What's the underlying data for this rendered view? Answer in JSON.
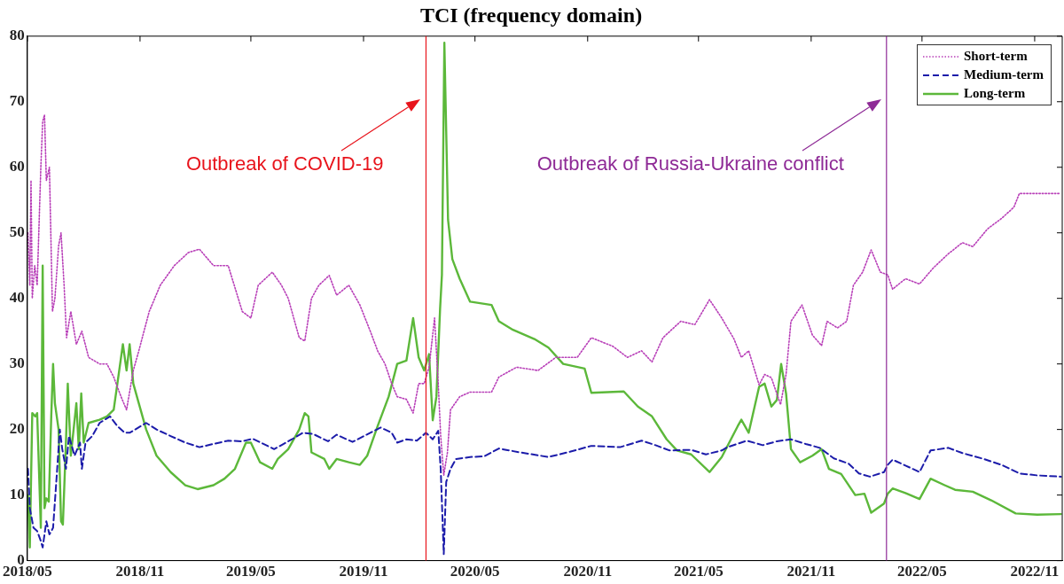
{
  "chart_data": {
    "type": "line",
    "title": "TCI (frequency domain)",
    "xlim": [
      "2018-05-01",
      "2022-12-16"
    ],
    "xticks": [
      {
        "value": "2018-05-01",
        "label": "2018/05"
      },
      {
        "value": "2018-11-01",
        "label": "2018/11"
      },
      {
        "value": "2019-05-01",
        "label": "2019/05"
      },
      {
        "value": "2019-11-01",
        "label": "2019/11"
      },
      {
        "value": "2020-05-01",
        "label": "2020/05"
      },
      {
        "value": "2020-11-01",
        "label": "2020/11"
      },
      {
        "value": "2021-05-01",
        "label": "2021/05"
      },
      {
        "value": "2021-11-01",
        "label": "2021/11"
      },
      {
        "value": "2022-05-01",
        "label": "2022/05"
      },
      {
        "value": "2022-11-01",
        "label": "2022/11"
      }
    ],
    "ylim": [
      0,
      80
    ],
    "yticks": [
      0,
      10,
      20,
      30,
      40,
      50,
      60,
      70,
      80
    ],
    "grid": false,
    "legend": "top right",
    "marker": "none",
    "ref_lines": [
      {
        "axis": "x",
        "value": "2020-02-11",
        "label": "Outbreak of COVID-19",
        "color": "#e8141c"
      },
      {
        "axis": "x",
        "value": "2022-03-04",
        "label": "Outbreak of Russia-Ukraine conflict",
        "color": "#8e2a96"
      }
    ],
    "series": [
      {
        "name": "Short-term",
        "color": "#b83fb8",
        "line_style": "dotted",
        "x": [
          "2018-05-02",
          "2018-05-05",
          "2018-05-07",
          "2018-05-09",
          "2018-05-13",
          "2018-05-17",
          "2018-05-23",
          "2018-05-26",
          "2018-05-29",
          "2018-06-01",
          "2018-06-06",
          "2018-06-11",
          "2018-06-15",
          "2018-06-21",
          "2018-06-25",
          "2018-06-30",
          "2018-07-04",
          "2018-07-11",
          "2018-07-20",
          "2018-07-29",
          "2018-08-09",
          "2018-08-27",
          "2018-09-08",
          "2018-09-19",
          "2018-10-01",
          "2018-10-10",
          "2018-10-21",
          "2018-10-30",
          "2018-11-16",
          "2018-12-04",
          "2018-12-27",
          "2019-01-19",
          "2019-02-06",
          "2019-03-01",
          "2019-03-25",
          "2019-04-17",
          "2019-05-01",
          "2019-05-13",
          "2019-06-05",
          "2019-06-20",
          "2019-07-01",
          "2019-07-19",
          "2019-07-28",
          "2019-08-08",
          "2019-08-20",
          "2019-09-06",
          "2019-09-18",
          "2019-10-08",
          "2019-10-26",
          "2019-11-12",
          "2019-11-24",
          "2019-12-06",
          "2019-12-17",
          "2019-12-26",
          "2020-01-10",
          "2020-01-21",
          "2020-01-30",
          "2020-02-08",
          "2020-02-16",
          "2020-02-25",
          "2020-03-02",
          "2020-03-06",
          "2020-03-11",
          "2020-03-17",
          "2020-03-22",
          "2020-04-06",
          "2020-04-23",
          "2020-05-28",
          "2020-06-09",
          "2020-07-08",
          "2020-08-12",
          "2020-09-10",
          "2020-10-15",
          "2020-11-07",
          "2020-12-12",
          "2021-01-05",
          "2021-01-28",
          "2021-02-14",
          "2021-03-04",
          "2021-04-02",
          "2021-04-25",
          "2021-05-19",
          "2021-06-08",
          "2021-06-28",
          "2021-07-10",
          "2021-07-22",
          "2021-08-08",
          "2021-08-17",
          "2021-08-28",
          "2021-09-12",
          "2021-09-21",
          "2021-09-29",
          "2021-10-17",
          "2021-11-03",
          "2021-11-18",
          "2021-11-27",
          "2021-12-14",
          "2021-12-29",
          "2022-01-09",
          "2022-01-24",
          "2022-02-07",
          "2022-02-22",
          "2022-03-06",
          "2022-03-14",
          "2022-04-04",
          "2022-04-27",
          "2022-05-20",
          "2022-06-13",
          "2022-07-06",
          "2022-07-23",
          "2022-08-16",
          "2022-09-08",
          "2022-09-28",
          "2022-10-07",
          "2022-11-05",
          "2022-12-13"
        ],
        "values": [
          50,
          42,
          58,
          40,
          45,
          42,
          60,
          67,
          68,
          58,
          60,
          38,
          40,
          48,
          50,
          42,
          34,
          38,
          33,
          35,
          31,
          30,
          30,
          28,
          25,
          23,
          29,
          32,
          38,
          42,
          45,
          47,
          47.5,
          45,
          45,
          38,
          37,
          42,
          44,
          42,
          40,
          34,
          33.5,
          40,
          42,
          43.5,
          40.5,
          42,
          39,
          35,
          32,
          30,
          27,
          25,
          24.6,
          22.5,
          27,
          27,
          29.5,
          37,
          27,
          19,
          13,
          16.5,
          23,
          25,
          25.7,
          25.7,
          28,
          29.5,
          29,
          31,
          31,
          34,
          32.7,
          31,
          32,
          30.3,
          34,
          36.5,
          36,
          39.8,
          37,
          33.8,
          31,
          32,
          26.8,
          28.4,
          27.9,
          23.8,
          28.4,
          36.5,
          39,
          34.4,
          32.8,
          36.5,
          35.5,
          36.5,
          42,
          44,
          47.4,
          44,
          43.6,
          41.4,
          43,
          42.2,
          44.7,
          46.8,
          48.5,
          47.9,
          50.6,
          52.2,
          53.9,
          56,
          56,
          56
        ]
      },
      {
        "name": "Medium-term",
        "color": "#1c1caa",
        "line_style": "dashed",
        "x": [
          "2018-05-02",
          "2018-05-05",
          "2018-05-11",
          "2018-05-17",
          "2018-05-23",
          "2018-05-26",
          "2018-06-01",
          "2018-06-06",
          "2018-06-12",
          "2018-06-18",
          "2018-06-23",
          "2018-06-27",
          "2018-07-03",
          "2018-07-08",
          "2018-07-17",
          "2018-07-26",
          "2018-07-29",
          "2018-08-04",
          "2018-08-15",
          "2018-08-27",
          "2018-09-13",
          "2018-09-25",
          "2018-10-07",
          "2018-10-15",
          "2018-10-24",
          "2018-11-11",
          "2018-11-28",
          "2018-12-21",
          "2019-01-14",
          "2019-02-06",
          "2019-03-01",
          "2019-03-25",
          "2019-04-17",
          "2019-05-04",
          "2019-06-08",
          "2019-07-07",
          "2019-07-25",
          "2019-08-11",
          "2019-09-04",
          "2019-09-18",
          "2019-10-14",
          "2019-11-12",
          "2019-11-29",
          "2019-12-17",
          "2019-12-26",
          "2020-01-10",
          "2020-01-27",
          "2020-02-11",
          "2020-02-22",
          "2020-03-02",
          "2020-03-06",
          "2020-03-11",
          "2020-03-15",
          "2020-03-22",
          "2020-03-31",
          "2020-04-23",
          "2020-05-16",
          "2020-06-09",
          "2020-07-14",
          "2020-08-29",
          "2020-10-03",
          "2020-11-07",
          "2020-12-24",
          "2021-01-28",
          "2021-02-20",
          "2021-03-15",
          "2021-04-19",
          "2021-05-13",
          "2021-06-08",
          "2021-06-17",
          "2021-07-19",
          "2021-08-14",
          "2021-09-06",
          "2021-09-29",
          "2021-10-23",
          "2021-11-15",
          "2021-12-08",
          "2022-01-01",
          "2022-01-18",
          "2022-02-05",
          "2022-02-28",
          "2022-03-06",
          "2022-03-14",
          "2022-04-04",
          "2022-04-27",
          "2022-05-15",
          "2022-06-13",
          "2022-07-06",
          "2022-08-10",
          "2022-09-08",
          "2022-10-07",
          "2022-11-05",
          "2022-12-14"
        ],
        "values": [
          14,
          8,
          5,
          4.5,
          3,
          2,
          6,
          4,
          5,
          13,
          20,
          17,
          14,
          19,
          16,
          18,
          14,
          18,
          19,
          21,
          22,
          20.5,
          19.5,
          19.5,
          20,
          21,
          20,
          19,
          18,
          17.3,
          17.8,
          18.3,
          18.2,
          18.6,
          17,
          18.5,
          19.5,
          19.3,
          18.2,
          19.2,
          18.1,
          19.5,
          20.3,
          19.5,
          18,
          18.5,
          18.3,
          19.5,
          18.5,
          19.8,
          14,
          1,
          12,
          14,
          15.5,
          15.8,
          15.9,
          17.1,
          16.5,
          15.8,
          16.6,
          17.5,
          17.3,
          18.3,
          17.6,
          16.8,
          16.9,
          16.2,
          16.8,
          17.3,
          18.3,
          17.6,
          18.2,
          18.5,
          17.8,
          17.2,
          15.6,
          14.8,
          13.3,
          12.8,
          13.5,
          14.6,
          15.4,
          14.5,
          13.5,
          16.8,
          17.2,
          16.4,
          15.5,
          14.6,
          13.3,
          13,
          12.8
        ]
      },
      {
        "name": "Long-term",
        "color": "#5cb83a",
        "line_style": "solid",
        "x": [
          "2018-05-02",
          "2018-05-05",
          "2018-05-09",
          "2018-05-14",
          "2018-05-17",
          "2018-05-23",
          "2018-05-26",
          "2018-05-29",
          "2018-06-01",
          "2018-06-05",
          "2018-06-09",
          "2018-06-12",
          "2018-06-15",
          "2018-06-21",
          "2018-06-25",
          "2018-06-28",
          "2018-07-03",
          "2018-07-06",
          "2018-07-11",
          "2018-07-20",
          "2018-07-24",
          "2018-07-28",
          "2018-08-01",
          "2018-08-09",
          "2018-08-27",
          "2018-09-08",
          "2018-09-19",
          "2018-09-28",
          "2018-10-04",
          "2018-10-10",
          "2018-10-15",
          "2018-10-21",
          "2018-10-30",
          "2018-11-11",
          "2018-11-28",
          "2018-12-21",
          "2019-01-14",
          "2019-02-03",
          "2019-03-01",
          "2019-03-19",
          "2019-04-05",
          "2019-04-23",
          "2019-05-01",
          "2019-05-16",
          "2019-06-05",
          "2019-06-14",
          "2019-07-01",
          "2019-07-19",
          "2019-07-28",
          "2019-08-03",
          "2019-08-08",
          "2019-08-29",
          "2019-09-06",
          "2019-09-18",
          "2019-10-08",
          "2019-10-26",
          "2019-11-07",
          "2019-11-24",
          "2019-12-12",
          "2019-12-26",
          "2020-01-10",
          "2020-01-21",
          "2020-01-30",
          "2020-02-08",
          "2020-02-16",
          "2020-02-22",
          "2020-02-28",
          "2020-03-05",
          "2020-03-08",
          "2020-03-12",
          "2020-03-18",
          "2020-03-25",
          "2020-04-06",
          "2020-04-23",
          "2020-05-28",
          "2020-06-09",
          "2020-07-02",
          "2020-08-06",
          "2020-08-29",
          "2020-09-22",
          "2020-10-27",
          "2020-11-07",
          "2020-12-30",
          "2021-01-22",
          "2021-02-14",
          "2021-03-10",
          "2021-03-27",
          "2021-04-19",
          "2021-05-19",
          "2021-06-08",
          "2021-07-04",
          "2021-07-10",
          "2021-07-22",
          "2021-08-08",
          "2021-08-17",
          "2021-08-28",
          "2021-09-06",
          "2021-09-13",
          "2021-09-21",
          "2021-09-29",
          "2021-10-14",
          "2021-11-03",
          "2021-11-18",
          "2021-11-30",
          "2021-12-20",
          "2022-01-12",
          "2022-01-27",
          "2022-02-07",
          "2022-02-28",
          "2022-03-06",
          "2022-03-14",
          "2022-04-04",
          "2022-04-27",
          "2022-05-15",
          "2022-06-07",
          "2022-06-24",
          "2022-07-23",
          "2022-08-22",
          "2022-10-01",
          "2022-11-05",
          "2022-12-14"
        ],
        "values": [
          10,
          2,
          22.5,
          22,
          22.5,
          5,
          45,
          8,
          9.5,
          9,
          22,
          30,
          24,
          20,
          6,
          5.5,
          18,
          27,
          16,
          24,
          17,
          25.5,
          18,
          21,
          21.5,
          22,
          23,
          29,
          33,
          29,
          33,
          27,
          24,
          20,
          16,
          13.5,
          11.5,
          10.9,
          11.5,
          12.5,
          14,
          18,
          18,
          15,
          14,
          15.5,
          17,
          20,
          22.5,
          22,
          16.5,
          15.5,
          14,
          15.5,
          15,
          14.6,
          16,
          20.5,
          25,
          30,
          30.5,
          37,
          31,
          29,
          31.5,
          21.4,
          25,
          38.4,
          43.6,
          79,
          52,
          46,
          43,
          39.5,
          39,
          36.5,
          35.2,
          33.8,
          32.5,
          30,
          29.3,
          25.6,
          25.8,
          23.5,
          22,
          18.5,
          16.8,
          16.2,
          13.5,
          15.8,
          20.5,
          21.5,
          19.5,
          26.5,
          27,
          23.5,
          24.5,
          30,
          25.5,
          17,
          15,
          16,
          17,
          14,
          13.2,
          10,
          10.2,
          7.3,
          8.7,
          10.2,
          11,
          10.3,
          9.4,
          12.5,
          11.5,
          10.8,
          10.5,
          9.2,
          7.2,
          7,
          7.1
        ]
      }
    ]
  }
}
